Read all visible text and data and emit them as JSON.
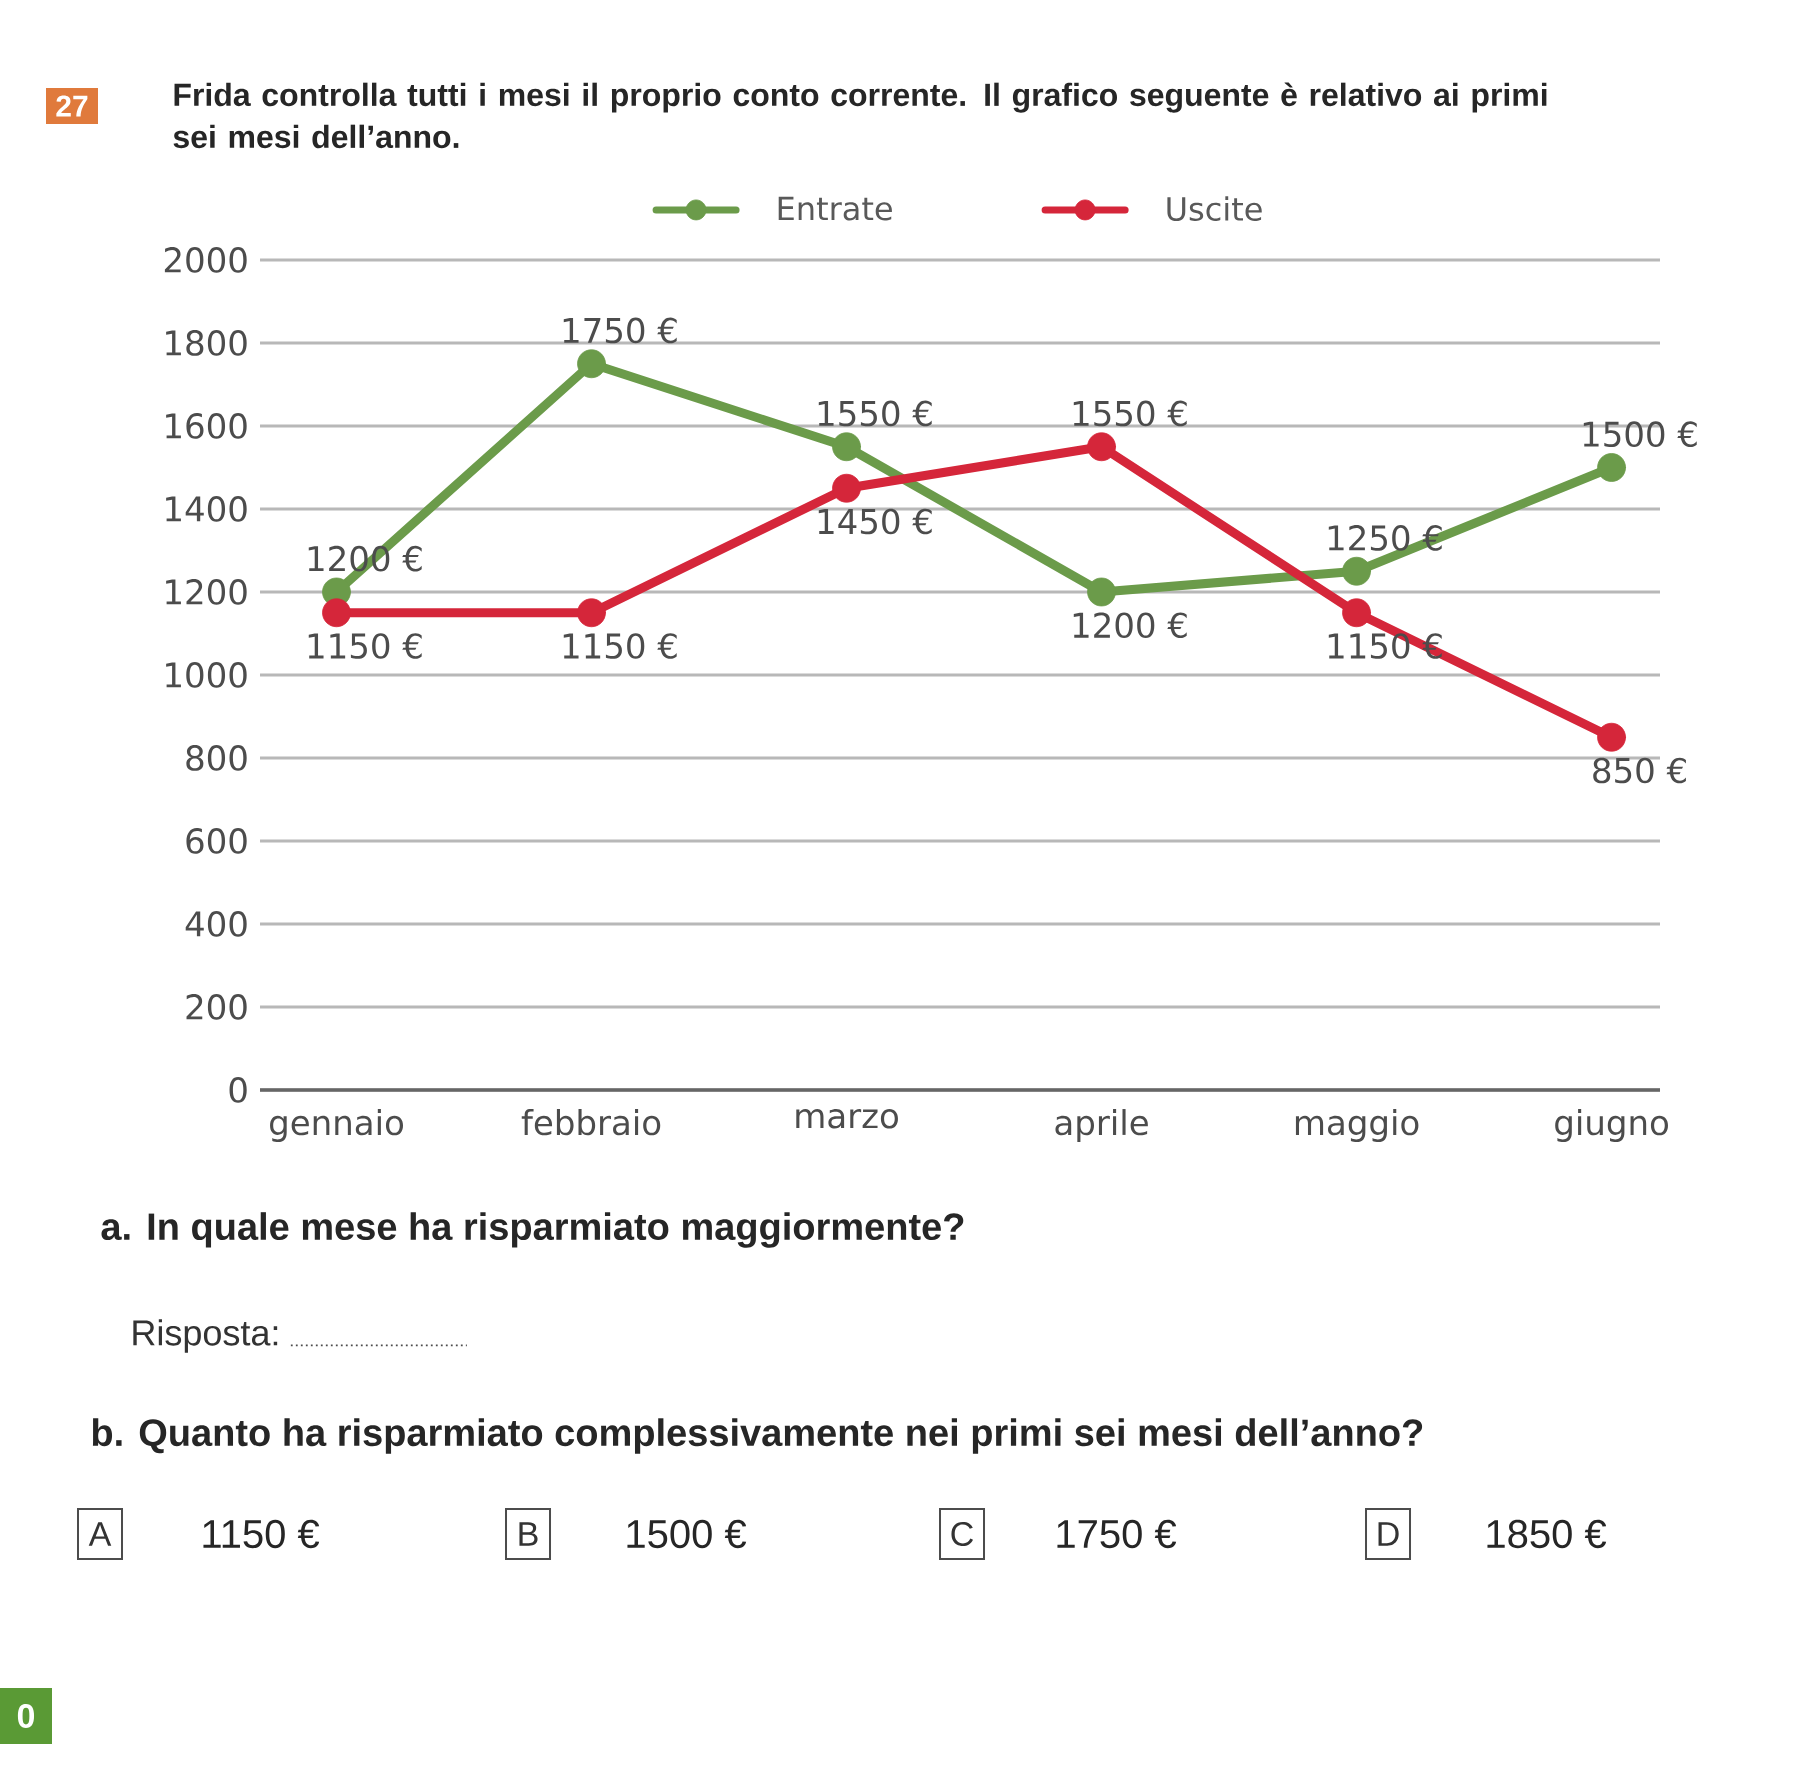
{
  "chart_data": {
    "type": "line",
    "title": "Frida controlla tutti i mesi il proprio conto corrente. Il grafico seguente è relativo ai primi sei mesi dell’anno.",
    "categories": [
      "gennaio",
      "febbraio",
      "marzo",
      "aprile",
      "maggio",
      "giugno"
    ],
    "series": [
      {
        "name": "Entrate",
        "color": "#6b9b4a",
        "values": [
          1200,
          1750,
          1550,
          1200,
          1250,
          1500
        ],
        "value_labels": [
          "1200 €",
          "1750 €",
          "1550 €",
          "1200 €",
          "1250 €",
          "1500 €"
        ]
      },
      {
        "name": "Uscite",
        "color": "#d5263a",
        "values": [
          1150,
          1150,
          1450,
          1550,
          1150,
          850
        ],
        "value_labels": [
          "1150 €",
          "1150 €",
          "1450 €",
          "1550 €",
          "1150 €",
          "850 €"
        ]
      }
    ],
    "ylim": [
      0,
      2000
    ],
    "yticks": [
      0,
      200,
      400,
      600,
      800,
      1000,
      1200,
      1400,
      1600,
      1800,
      2000
    ],
    "grid": "y",
    "legend": "top",
    "marker": "circle",
    "line_style": "solid",
    "annotations": [
      "27",
      "a. In quale mese ha risparmiato maggiormente?",
      "Risposta:",
      "b. Quanto ha risparmiato complessivamente nei primi sei mesi dell’anno?",
      "A",
      "1150 €",
      "B",
      "1500 €",
      "C",
      "1750 €",
      "D",
      "1850 €",
      "0"
    ]
  }
}
